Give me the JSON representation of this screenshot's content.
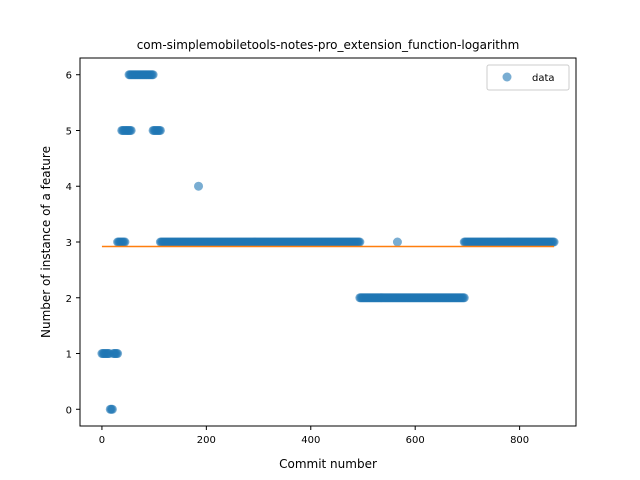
{
  "chart_data": {
    "type": "scatter",
    "title": "com-simplemobiletools-notes-pro_extension_function-logarithm",
    "xlabel": "Commit number",
    "ylabel": "Number of instance of a feature",
    "xlim": [
      -42,
      908
    ],
    "ylim": [
      -0.3,
      6.3
    ],
    "xticks": [
      0,
      200,
      400,
      600,
      800
    ],
    "yticks": [
      0,
      1,
      2,
      3,
      4,
      5,
      6
    ],
    "legend": {
      "position": "top-right",
      "entries": [
        "data"
      ]
    },
    "colors": {
      "data": "#1f77b4",
      "fit": "#ff7f0e"
    },
    "series": [
      {
        "name": "data",
        "segments": [
          {
            "x_start": 0,
            "x_end": 14,
            "y": 1
          },
          {
            "x_start": 16,
            "x_end": 20,
            "y": 0
          },
          {
            "x_start": 22,
            "x_end": 30,
            "y": 1
          },
          {
            "x_start": 30,
            "x_end": 44,
            "y": 3
          },
          {
            "x_start": 38,
            "x_end": 56,
            "y": 5
          },
          {
            "x_start": 52,
            "x_end": 98,
            "y": 6
          },
          {
            "x_start": 98,
            "x_end": 112,
            "y": 5
          },
          {
            "x_start": 112,
            "x_end": 494,
            "y": 3
          },
          {
            "x_start": 494,
            "x_end": 694,
            "y": 2
          },
          {
            "x_start": 694,
            "x_end": 866,
            "y": 3
          }
        ],
        "points": [
          {
            "x": 185,
            "y": 4
          },
          {
            "x": 566,
            "y": 3
          }
        ]
      }
    ],
    "fit_line": {
      "x": [
        0,
        866
      ],
      "y": [
        2.92,
        2.92
      ]
    }
  }
}
